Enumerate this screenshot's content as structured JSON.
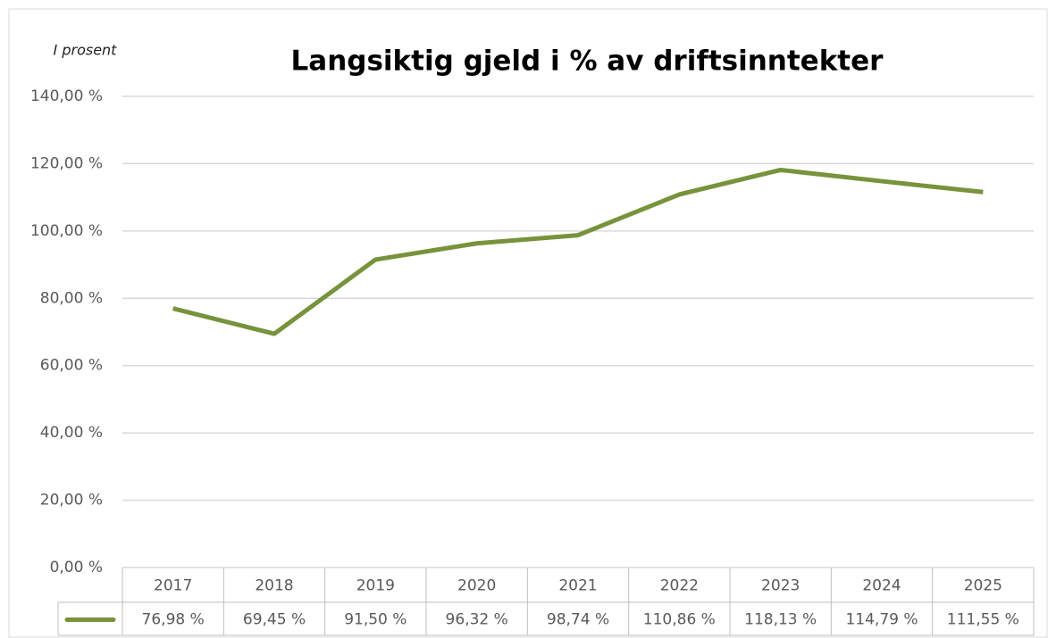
{
  "chart_data": {
    "type": "line",
    "title": "Langsiktig gjeld i % av driftsinntekter",
    "y_label": "I prosent",
    "categories": [
      "2017",
      "2018",
      "2019",
      "2020",
      "2021",
      "2022",
      "2023",
      "2024",
      "2025"
    ],
    "series": [
      {
        "color": "#77933c",
        "values": [
          76.98,
          69.45,
          91.5,
          96.32,
          98.74,
          110.86,
          118.13,
          114.79,
          111.55
        ],
        "value_labels": [
          "76,98 %",
          "69,45 %",
          "91,50 %",
          "96,32 %",
          "98,74 %",
          "110,86 %",
          "118,13 %",
          "114,79 %",
          "111,55 %"
        ]
      }
    ],
    "ylim": [
      0,
      140
    ],
    "yticks": [
      {
        "value": 0,
        "label": "0,00 %"
      },
      {
        "value": 20,
        "label": "20,00 %"
      },
      {
        "value": 40,
        "label": "40,00 %"
      },
      {
        "value": 60,
        "label": "60,00 %"
      },
      {
        "value": 80,
        "label": "80,00 %"
      },
      {
        "value": 100,
        "label": "100,00 %"
      },
      {
        "value": 120,
        "label": "120,00 %"
      },
      {
        "value": 140,
        "label": "140,00 %"
      }
    ],
    "grid": true,
    "data_table": true
  }
}
